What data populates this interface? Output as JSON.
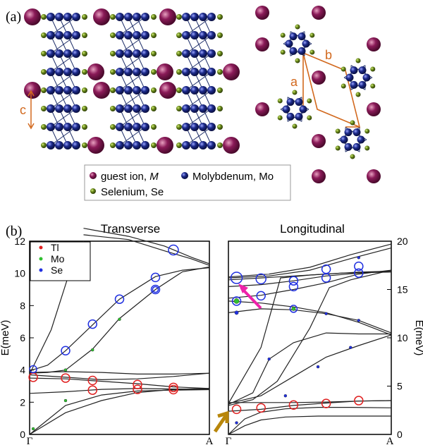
{
  "panel_a": {
    "label": "(a)",
    "c_label": "c",
    "a_label": "a",
    "b_label": "b",
    "legend": [
      {
        "name": "guest ion, ",
        "italic": "M",
        "color": "#7a1048"
      },
      {
        "name": "Molybdenum, Mo",
        "italic": "",
        "color": "#1c2470"
      },
      {
        "name": "Selenium, Se",
        "italic": "",
        "color": "#5a7a1a"
      }
    ]
  },
  "panel_b": {
    "label": "(b)",
    "ylabel": "E(meV)",
    "ylabel_right": "E(meV)"
  },
  "colors": {
    "Tl": "#e02020",
    "Mo": "#30c030",
    "Se": "#2030e0",
    "arrow_pink": "#ee22aa",
    "arrow_gold": "#b8860b",
    "orange": "#d2691e"
  },
  "chart_data": [
    {
      "type": "scatter",
      "title": "Transverse",
      "xticks": [
        "Γ",
        "A"
      ],
      "xlim": [
        0,
        1
      ],
      "ylim": [
        0,
        12
      ],
      "yticks": [
        0,
        2,
        4,
        6,
        8,
        10,
        12
      ],
      "legend": [
        "Tl",
        "Mo",
        "Se"
      ],
      "legend_position": "top-left",
      "lines": [
        [
          [
            0,
            0
          ],
          [
            0.2,
            1.8
          ],
          [
            0.4,
            2.45
          ],
          [
            0.6,
            2.7
          ],
          [
            0.8,
            2.75
          ],
          [
            1,
            2.78
          ]
        ],
        [
          [
            0,
            0
          ],
          [
            0.2,
            1.35
          ],
          [
            0.4,
            2.1
          ],
          [
            0.6,
            2.6
          ],
          [
            0.8,
            2.8
          ],
          [
            1,
            2.85
          ]
        ],
        [
          [
            0,
            2.55
          ],
          [
            0.2,
            2.65
          ],
          [
            0.4,
            2.8
          ],
          [
            0.6,
            2.85
          ],
          [
            0.8,
            2.82
          ],
          [
            1,
            2.8
          ]
        ],
        [
          [
            0,
            3.5
          ],
          [
            0.2,
            3.45
          ],
          [
            0.4,
            3.3
          ],
          [
            0.6,
            3.15
          ],
          [
            0.8,
            2.95
          ],
          [
            1,
            2.85
          ]
        ],
        [
          [
            0,
            3.7
          ],
          [
            0.2,
            3.55
          ],
          [
            0.4,
            3.4
          ],
          [
            0.6,
            3.45
          ],
          [
            0.8,
            3.6
          ],
          [
            1,
            3.8
          ]
        ],
        [
          [
            0,
            3.85
          ],
          [
            0.2,
            3.9
          ],
          [
            0.4,
            3.85
          ],
          [
            0.6,
            3.75
          ],
          [
            0.8,
            3.75
          ],
          [
            1,
            3.8
          ]
        ],
        [
          [
            0,
            3.95
          ],
          [
            0.1,
            4.3
          ],
          [
            0.2,
            5.2
          ],
          [
            0.35,
            6.8
          ],
          [
            0.5,
            8.4
          ],
          [
            0.7,
            9.8
          ],
          [
            0.85,
            10.2
          ],
          [
            1,
            10.35
          ]
        ],
        [
          [
            0,
            3.8
          ],
          [
            0.1,
            3.85
          ],
          [
            0.2,
            4.0
          ],
          [
            0.35,
            5.3
          ],
          [
            0.5,
            7.2
          ],
          [
            0.7,
            9.0
          ],
          [
            0.85,
            10.1
          ],
          [
            1,
            10.4
          ]
        ],
        [
          [
            0,
            3.75
          ],
          [
            0.12,
            6.5
          ],
          [
            0.22,
            10.0
          ],
          [
            0.3,
            12.0
          ]
        ],
        [
          [
            0.3,
            12.4
          ],
          [
            0.55,
            12.1
          ],
          [
            0.75,
            11.4
          ],
          [
            0.9,
            10.9
          ],
          [
            1,
            10.5
          ]
        ],
        [
          [
            0.3,
            12.8
          ],
          [
            0.55,
            12.3
          ],
          [
            0.75,
            11.7
          ],
          [
            0.9,
            11.0
          ],
          [
            1,
            10.6
          ]
        ]
      ],
      "points": [
        {
          "x": 0.02,
          "y": 0.35,
          "ion": "Mo",
          "size": 2
        },
        {
          "x": 0.2,
          "y": 2.1,
          "ion": "Mo",
          "size": 2
        },
        {
          "x": 0.2,
          "y": 4.0,
          "ion": "Mo",
          "size": 2
        },
        {
          "x": 0.35,
          "y": 5.25,
          "ion": "Mo",
          "size": 2
        },
        {
          "x": 0.5,
          "y": 7.15,
          "ion": "Mo",
          "size": 2
        },
        {
          "x": 0.7,
          "y": 9.0,
          "ion": "Se",
          "size": 4
        },
        {
          "x": 0.02,
          "y": 3.55,
          "ion": "Tl",
          "size": 6
        },
        {
          "x": 0.2,
          "y": 3.5,
          "ion": "Tl",
          "size": 6
        },
        {
          "x": 0.35,
          "y": 3.35,
          "ion": "Tl",
          "size": 6
        },
        {
          "x": 0.35,
          "y": 2.75,
          "ion": "Tl",
          "size": 6
        },
        {
          "x": 0.6,
          "y": 3.1,
          "ion": "Tl",
          "size": 6
        },
        {
          "x": 0.6,
          "y": 2.8,
          "ion": "Tl",
          "size": 6
        },
        {
          "x": 0.8,
          "y": 2.92,
          "ion": "Tl",
          "size": 6
        },
        {
          "x": 0.8,
          "y": 2.78,
          "ion": "Tl",
          "size": 6
        },
        {
          "x": 0.02,
          "y": 4.05,
          "ion": "Se",
          "size": 5
        },
        {
          "x": 0.2,
          "y": 5.2,
          "ion": "Se",
          "size": 6
        },
        {
          "x": 0.35,
          "y": 6.85,
          "ion": "Se",
          "size": 6
        },
        {
          "x": 0.5,
          "y": 8.4,
          "ion": "Se",
          "size": 6
        },
        {
          "x": 0.7,
          "y": 9.75,
          "ion": "Se",
          "size": 6
        },
        {
          "x": 0.7,
          "y": 9.0,
          "ion": "Se",
          "size": 6
        },
        {
          "x": 0.8,
          "y": 11.45,
          "ion": "Se",
          "size": 7
        }
      ]
    },
    {
      "type": "scatter",
      "title": "Longitudinal",
      "xticks": [
        "Γ",
        "A"
      ],
      "xlim": [
        0,
        1
      ],
      "ylim": [
        0,
        20
      ],
      "yticks": [
        0,
        5,
        10,
        15,
        20
      ],
      "lines": [
        [
          [
            0,
            0
          ],
          [
            0.1,
            1.6
          ],
          [
            0.2,
            2.3
          ],
          [
            0.35,
            2.65
          ],
          [
            0.55,
            2.8
          ],
          [
            0.75,
            2.8
          ],
          [
            1,
            2.75
          ]
        ],
        [
          [
            0,
            0
          ],
          [
            0.1,
            0.9
          ],
          [
            0.2,
            1.5
          ],
          [
            0.35,
            1.8
          ],
          [
            0.55,
            1.9
          ],
          [
            0.75,
            1.9
          ],
          [
            1,
            1.9
          ]
        ],
        [
          [
            0,
            2.4
          ],
          [
            0.2,
            2.6
          ],
          [
            0.4,
            3.0
          ],
          [
            0.6,
            3.25
          ],
          [
            0.8,
            3.45
          ],
          [
            1,
            3.5
          ]
        ],
        [
          [
            0,
            3.3
          ],
          [
            0.2,
            3.3
          ],
          [
            0.4,
            3.3
          ],
          [
            0.6,
            3.35
          ],
          [
            0.8,
            3.45
          ],
          [
            1,
            3.5
          ]
        ],
        [
          [
            0,
            3.1
          ],
          [
            0.15,
            4.3
          ],
          [
            0.25,
            7.8
          ],
          [
            0.4,
            9.5
          ],
          [
            0.6,
            10.5
          ],
          [
            0.8,
            10.4
          ],
          [
            1,
            10.4
          ]
        ],
        [
          [
            0,
            3.2
          ],
          [
            0.2,
            4.0
          ],
          [
            0.4,
            6.0
          ],
          [
            0.6,
            8.0
          ],
          [
            0.8,
            9.2
          ],
          [
            1,
            10.3
          ]
        ],
        [
          [
            0,
            3.0
          ],
          [
            0.15,
            3.6
          ],
          [
            0.3,
            5.5
          ],
          [
            0.5,
            11.0
          ],
          [
            0.62,
            15.2
          ],
          [
            0.75,
            16.0
          ],
          [
            1,
            17.0
          ]
        ],
        [
          [
            0,
            3.2
          ],
          [
            0.2,
            9.0
          ],
          [
            0.32,
            16.2
          ],
          [
            0.5,
            16.5
          ],
          [
            0.7,
            16.7
          ],
          [
            1,
            16.8
          ]
        ],
        [
          [
            0,
            12.6
          ],
          [
            0.2,
            13.0
          ],
          [
            0.4,
            12.9
          ],
          [
            0.6,
            12.5
          ],
          [
            0.8,
            11.8
          ],
          [
            1,
            10.5
          ]
        ],
        [
          [
            0,
            13.8
          ],
          [
            0.2,
            13.6
          ],
          [
            0.4,
            13.2
          ],
          [
            0.6,
            12.6
          ],
          [
            0.8,
            11.6
          ],
          [
            1,
            10.3
          ]
        ],
        [
          [
            0,
            14.1
          ],
          [
            0.2,
            14.4
          ],
          [
            0.4,
            15.0
          ],
          [
            0.6,
            15.7
          ],
          [
            0.8,
            16.6
          ],
          [
            1,
            17.0
          ]
        ],
        [
          [
            0,
            15.3
          ],
          [
            0.2,
            15.5
          ],
          [
            0.4,
            15.9
          ],
          [
            0.6,
            16.4
          ],
          [
            0.8,
            16.7
          ],
          [
            1,
            16.9
          ]
        ],
        [
          [
            0,
            16.0
          ],
          [
            0.2,
            16.2
          ],
          [
            0.4,
            16.4
          ],
          [
            0.6,
            16.6
          ],
          [
            0.8,
            16.8
          ],
          [
            1,
            16.9
          ]
        ],
        [
          [
            0,
            16.2
          ],
          [
            0.25,
            16.4
          ],
          [
            0.5,
            17.0
          ],
          [
            0.75,
            18.2
          ],
          [
            1,
            19.3
          ]
        ],
        [
          [
            0,
            16.3
          ],
          [
            0.25,
            16.6
          ],
          [
            0.5,
            17.3
          ],
          [
            0.75,
            18.6
          ],
          [
            1,
            19.7
          ]
        ]
      ],
      "points": [
        {
          "x": 0.05,
          "y": 1.2,
          "ion": "Se",
          "size": 2
        },
        {
          "x": 0.35,
          "y": 4.0,
          "ion": "Se",
          "size": 1
        },
        {
          "x": 0.55,
          "y": 7.0,
          "ion": "Se",
          "size": 1
        },
        {
          "x": 0.75,
          "y": 9.0,
          "ion": "Se",
          "size": 2
        },
        {
          "x": 0.25,
          "y": 7.8,
          "ion": "Se",
          "size": 2
        },
        {
          "x": 0.05,
          "y": 2.6,
          "ion": "Tl",
          "size": 6
        },
        {
          "x": 0.2,
          "y": 2.75,
          "ion": "Tl",
          "size": 6
        },
        {
          "x": 0.4,
          "y": 3.05,
          "ion": "Tl",
          "size": 6
        },
        {
          "x": 0.6,
          "y": 3.2,
          "ion": "Tl",
          "size": 6
        },
        {
          "x": 0.8,
          "y": 3.5,
          "ion": "Tl",
          "size": 6
        },
        {
          "x": 0.05,
          "y": 12.6,
          "ion": "Se",
          "size": 3
        },
        {
          "x": 0.05,
          "y": 13.8,
          "ion": "Mo",
          "size": 4
        },
        {
          "x": 0.05,
          "y": 13.8,
          "ion": "Se",
          "size": 6
        },
        {
          "x": 0.05,
          "y": 16.2,
          "ion": "Se",
          "size": 8
        },
        {
          "x": 0.2,
          "y": 14.35,
          "ion": "Se",
          "size": 6
        },
        {
          "x": 0.2,
          "y": 16.1,
          "ion": "Se",
          "size": 7
        },
        {
          "x": 0.4,
          "y": 13.0,
          "ion": "Mo",
          "size": 3
        },
        {
          "x": 0.4,
          "y": 13.0,
          "ion": "Se",
          "size": 5
        },
        {
          "x": 0.4,
          "y": 15.3,
          "ion": "Se",
          "size": 6
        },
        {
          "x": 0.4,
          "y": 15.9,
          "ion": "Se",
          "size": 6
        },
        {
          "x": 0.6,
          "y": 16.2,
          "ion": "Se",
          "size": 6
        },
        {
          "x": 0.6,
          "y": 17.1,
          "ion": "Se",
          "size": 6
        },
        {
          "x": 0.6,
          "y": 12.5,
          "ion": "Se",
          "size": 2
        },
        {
          "x": 0.8,
          "y": 18.3,
          "ion": "Se",
          "size": 2
        },
        {
          "x": 0.8,
          "y": 16.7,
          "ion": "Se",
          "size": 6
        },
        {
          "x": 0.8,
          "y": 17.4,
          "ion": "Se",
          "size": 6
        },
        {
          "x": 0.8,
          "y": 11.8,
          "ion": "Se",
          "size": 2
        }
      ]
    }
  ]
}
